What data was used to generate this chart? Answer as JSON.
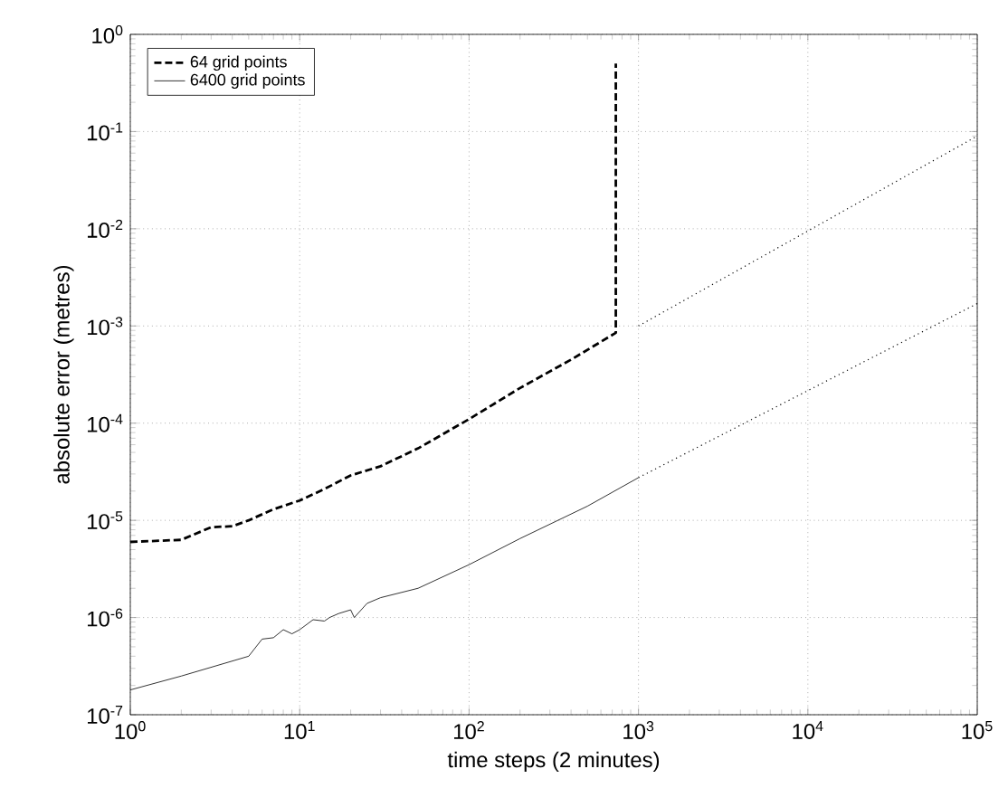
{
  "chart_data": {
    "type": "line",
    "xlabel": "time steps (2 minutes)",
    "ylabel": "absolute error (metres)",
    "log": "xy",
    "grid": true,
    "legend": "top left",
    "xlim": [
      1,
      100000
    ],
    "ylim": [
      1e-07,
      1
    ],
    "xticks": [
      {
        "value": 1,
        "label": "10$^{0}$"
      },
      {
        "value": 10,
        "label": "10$^{1}$"
      },
      {
        "value": 100,
        "label": "10$^{2}$"
      },
      {
        "value": 1000,
        "label": "10$^{3}$"
      },
      {
        "value": 10000,
        "label": "10$^{4}$"
      },
      {
        "value": 100000,
        "label": "10$^{5}$"
      }
    ],
    "yticks": [
      {
        "value": 1e-07,
        "label": "10$^{-7}$"
      },
      {
        "value": 1e-06,
        "label": "10$^{-6}$"
      },
      {
        "value": 1e-05,
        "label": "10$^{-5}$"
      },
      {
        "value": 0.0001,
        "label": "10$^{-4}$"
      },
      {
        "value": 0.001,
        "label": "10$^{-3}$"
      },
      {
        "value": 0.01,
        "label": "10$^{-2}$"
      },
      {
        "value": 0.1,
        "label": "10$^{-1}$"
      },
      {
        "value": 1,
        "label": "10$^{0}$"
      }
    ],
    "series": [
      {
        "name": "64 grid points",
        "color": "#000000",
        "line_style": "dashed",
        "x": [
          1,
          2,
          3,
          4,
          5,
          7,
          10,
          14,
          20,
          30,
          50,
          100,
          200,
          400,
          735,
          735
        ],
        "values": [
          6e-06,
          6.3e-06,
          8.5e-06,
          8.7e-06,
          1e-05,
          1.3e-05,
          1.6e-05,
          2.1e-05,
          2.9e-05,
          3.6e-05,
          5.5e-05,
          0.00011,
          0.00023,
          0.00045,
          0.00085,
          0.5
        ]
      },
      {
        "name": "6400 grid points",
        "color": "#000000",
        "line_style": "solid",
        "x": [
          1,
          2,
          5,
          6,
          7,
          8,
          9,
          10,
          12,
          14,
          15,
          17,
          20,
          21,
          25,
          30,
          50,
          100,
          200,
          500,
          1000
        ],
        "values": [
          1.8e-07,
          2.5e-07,
          4e-07,
          6e-07,
          6.2e-07,
          7.5e-07,
          6.8e-07,
          7.5e-07,
          9.5e-07,
          9.2e-07,
          1e-06,
          1.1e-06,
          1.2e-06,
          1e-06,
          1.4e-06,
          1.6e-06,
          2e-06,
          3.5e-06,
          6.5e-06,
          1.4e-05,
          2.75e-05
        ]
      },
      {
        "color": "#000000",
        "line_style": "dotted",
        "x": [
          1000,
          100000
        ],
        "values": [
          0.001,
          0.09
        ]
      },
      {
        "color": "#000000",
        "line_style": "dotted",
        "x": [
          1000,
          100000
        ],
        "values": [
          2.75e-05,
          0.0017
        ]
      }
    ]
  }
}
